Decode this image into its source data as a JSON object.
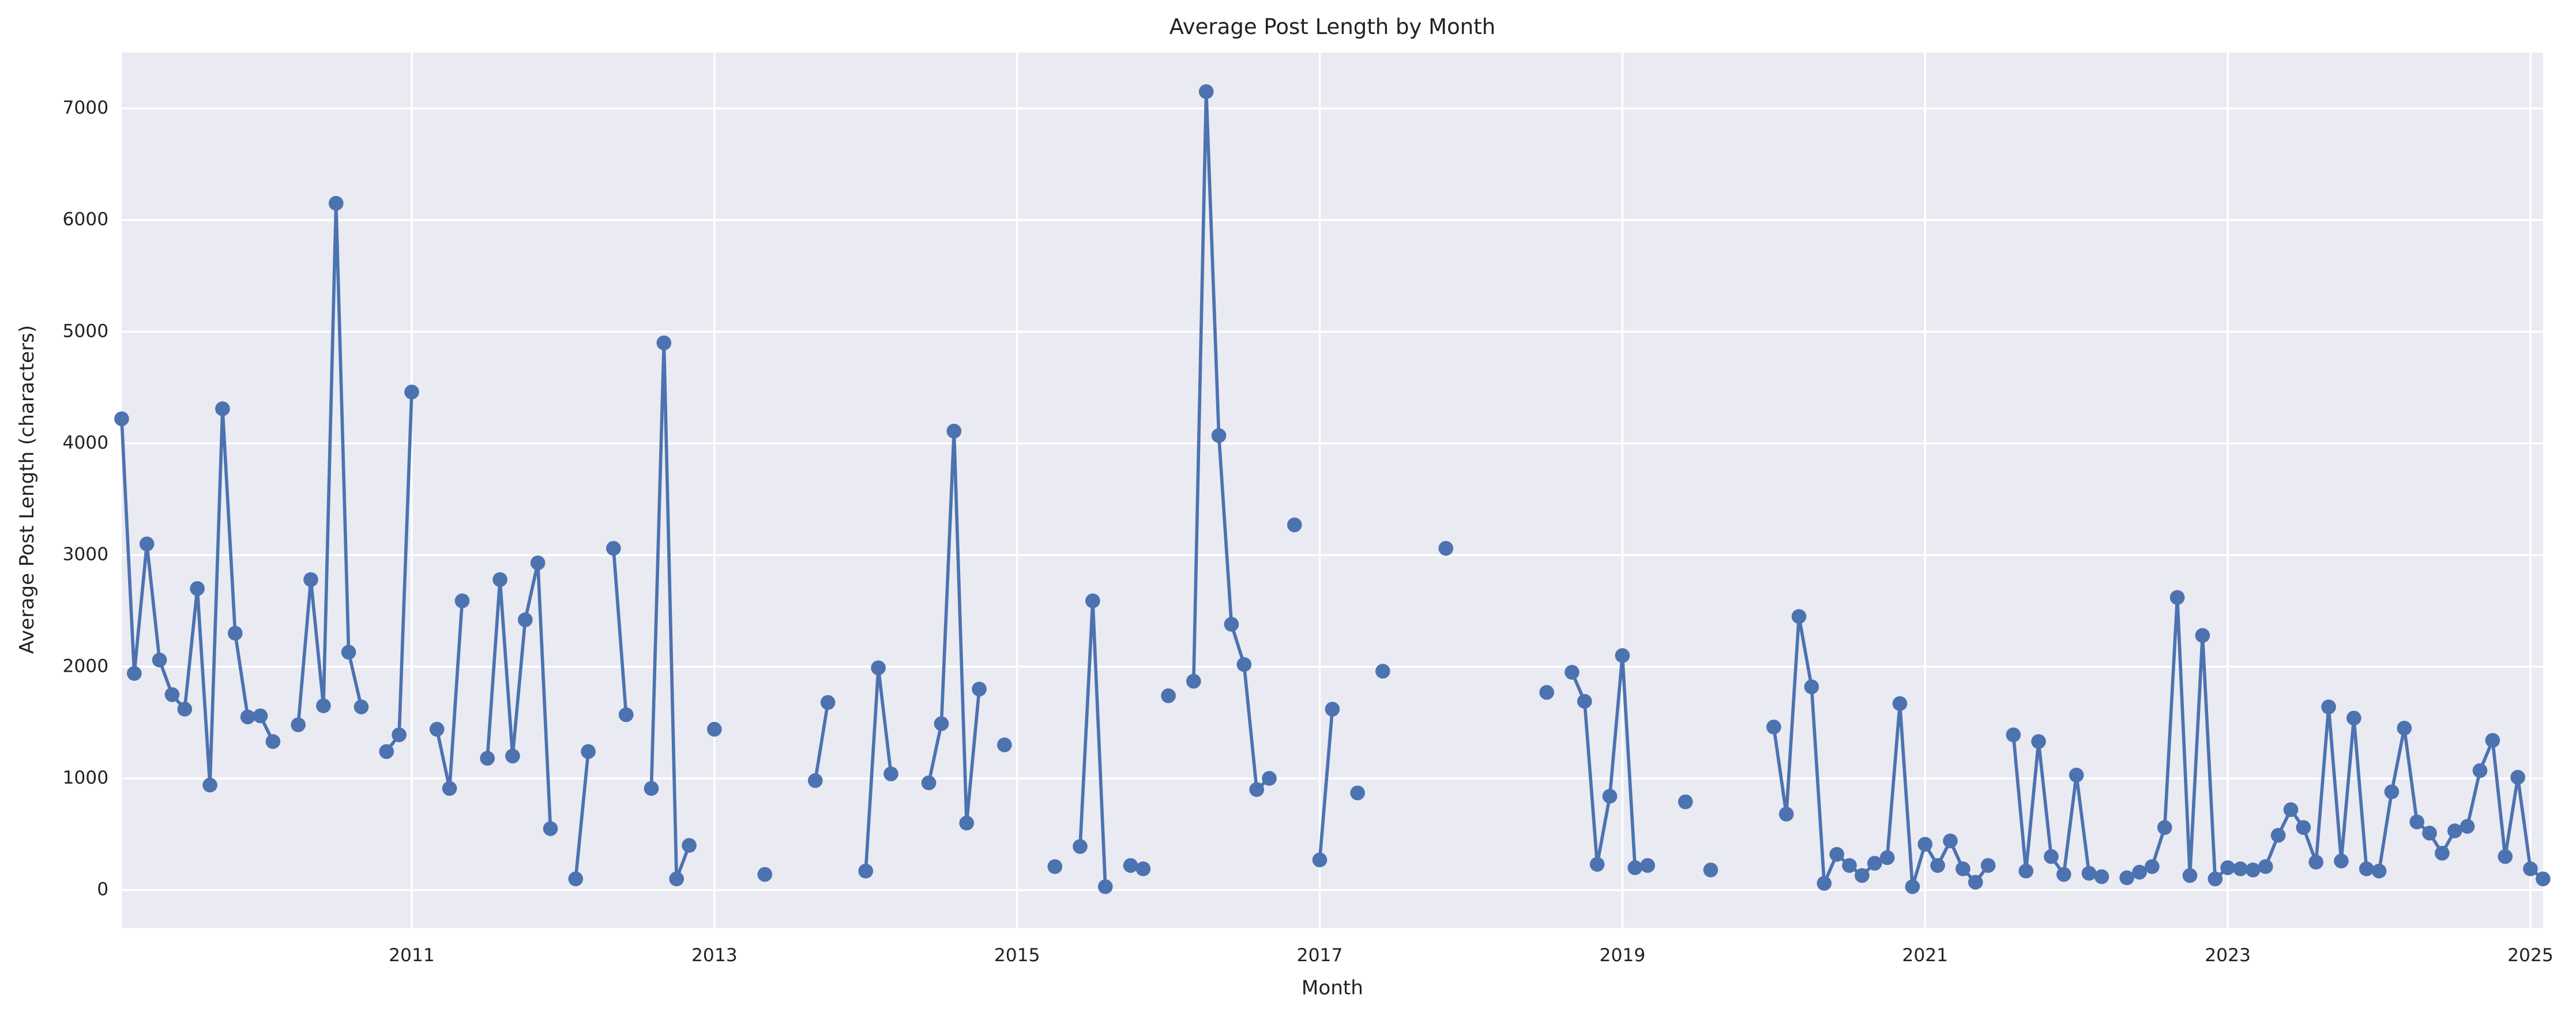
{
  "chart_data": {
    "type": "line",
    "title": "Average Post Length by Month",
    "x_label": "Month",
    "y_label": "Average Post Length (characters)",
    "x": [
      "2009-02",
      "2009-03",
      "2009-04",
      "2009-05",
      "2009-06",
      "2009-07",
      "2009-08",
      "2009-09",
      "2009-10",
      "2009-11",
      "2009-12",
      "2010-01",
      "2010-02",
      "2010-03",
      "2010-04",
      "2010-05",
      "2010-06",
      "2010-07",
      "2010-08",
      "2010-09",
      "2010-10",
      "2010-11",
      "2010-12",
      "2011-01",
      "2011-02",
      "2011-03",
      "2011-04",
      "2011-05",
      "2011-06",
      "2011-07",
      "2011-08",
      "2011-09",
      "2011-10",
      "2011-11",
      "2011-12",
      "2012-01",
      "2012-02",
      "2012-03",
      "2012-04",
      "2012-05",
      "2012-06",
      "2012-07",
      "2012-08",
      "2012-09",
      "2012-10",
      "2012-11",
      "2012-12",
      "2013-01",
      "2013-02",
      "2013-03",
      "2013-04",
      "2013-05",
      "2013-06",
      "2013-07",
      "2013-08",
      "2013-09",
      "2013-10",
      "2013-11",
      "2013-12",
      "2014-01",
      "2014-02",
      "2014-03",
      "2014-04",
      "2014-05",
      "2014-06",
      "2014-07",
      "2014-08",
      "2014-09",
      "2014-10",
      "2014-11",
      "2014-12",
      "2015-01",
      "2015-02",
      "2015-03",
      "2015-04",
      "2015-05",
      "2015-06",
      "2015-07",
      "2015-08",
      "2015-09",
      "2015-10",
      "2015-11",
      "2015-12",
      "2016-01",
      "2016-02",
      "2016-03",
      "2016-04",
      "2016-05",
      "2016-06",
      "2016-07",
      "2016-08",
      "2016-09",
      "2016-10",
      "2016-11",
      "2016-12",
      "2017-01",
      "2017-02",
      "2017-03",
      "2017-04",
      "2017-05",
      "2017-06",
      "2017-07",
      "2017-08",
      "2017-09",
      "2017-10",
      "2017-11",
      "2017-12",
      "2018-01",
      "2018-02",
      "2018-03",
      "2018-04",
      "2018-05",
      "2018-06",
      "2018-07",
      "2018-08",
      "2018-09",
      "2018-10",
      "2018-11",
      "2018-12",
      "2019-01",
      "2019-02",
      "2019-03",
      "2019-04",
      "2019-05",
      "2019-06",
      "2019-07",
      "2019-08",
      "2019-09",
      "2019-10",
      "2019-11",
      "2019-12",
      "2020-01",
      "2020-02",
      "2020-03",
      "2020-04",
      "2020-05",
      "2020-06",
      "2020-07",
      "2020-08",
      "2020-09",
      "2020-10",
      "2020-11",
      "2020-12",
      "2021-01",
      "2021-02",
      "2021-03",
      "2021-04",
      "2021-05",
      "2021-06",
      "2021-07",
      "2021-08",
      "2021-09",
      "2021-10",
      "2021-11",
      "2021-12",
      "2022-01",
      "2022-02",
      "2022-03",
      "2022-04",
      "2022-05",
      "2022-06",
      "2022-07",
      "2022-08",
      "2022-09",
      "2022-10",
      "2022-11",
      "2022-12",
      "2023-01",
      "2023-02",
      "2023-03",
      "2023-04",
      "2023-05",
      "2023-06",
      "2023-07",
      "2023-08",
      "2023-09",
      "2023-10",
      "2023-11",
      "2023-12",
      "2024-01",
      "2024-02",
      "2024-03",
      "2024-04",
      "2024-05",
      "2024-06",
      "2024-07",
      "2024-08",
      "2024-09",
      "2024-10",
      "2024-11",
      "2024-12",
      "2025-01",
      "2025-02"
    ],
    "series": [
      {
        "color": "#4c72b0",
        "values": [
          4220,
          1940,
          3100,
          2060,
          1750,
          1620,
          2700,
          940,
          4310,
          2300,
          1550,
          1560,
          1330,
          null,
          1480,
          2780,
          1650,
          6150,
          2130,
          1640,
          null,
          1240,
          1390,
          4460,
          null,
          1440,
          910,
          2590,
          null,
          1180,
          2780,
          1200,
          2420,
          2930,
          550,
          null,
          100,
          1240,
          null,
          3060,
          1570,
          null,
          910,
          4900,
          100,
          400,
          null,
          1440,
          null,
          null,
          null,
          140,
          null,
          null,
          null,
          980,
          1680,
          null,
          null,
          170,
          1990,
          1040,
          null,
          null,
          960,
          1490,
          4110,
          600,
          1800,
          null,
          1300,
          null,
          null,
          null,
          210,
          null,
          390,
          2590,
          30,
          null,
          220,
          190,
          null,
          1740,
          null,
          1870,
          7150,
          4070,
          2380,
          2020,
          900,
          1000,
          null,
          3270,
          null,
          270,
          1620,
          null,
          870,
          null,
          1960,
          null,
          null,
          null,
          null,
          3060,
          null,
          null,
          null,
          null,
          null,
          null,
          null,
          1770,
          null,
          1950,
          1690,
          230,
          840,
          2100,
          200,
          220,
          null,
          null,
          790,
          null,
          180,
          null,
          null,
          null,
          null,
          1460,
          680,
          2450,
          1820,
          60,
          320,
          220,
          130,
          240,
          290,
          1670,
          30,
          410,
          220,
          440,
          190,
          70,
          220,
          null,
          1390,
          170,
          1330,
          300,
          140,
          1030,
          150,
          120,
          null,
          110,
          160,
          210,
          560,
          2620,
          130,
          2280,
          100,
          200,
          190,
          180,
          210,
          490,
          720,
          560,
          250,
          1640,
          260,
          1540,
          190,
          170,
          880,
          1450,
          610,
          510,
          330,
          530,
          570,
          1070,
          1340,
          300,
          1010,
          190,
          100
        ]
      }
    ],
    "xlim": [
      "2009-02",
      "2025-02"
    ],
    "xticks": [
      {
        "value": "2011-01",
        "label": "2011"
      },
      {
        "value": "2013-01",
        "label": "2013"
      },
      {
        "value": "2015-01",
        "label": "2015"
      },
      {
        "value": "2017-01",
        "label": "2017"
      },
      {
        "value": "2019-01",
        "label": "2019"
      },
      {
        "value": "2021-01",
        "label": "2021"
      },
      {
        "value": "2023-01",
        "label": "2023"
      },
      {
        "value": "2025-01",
        "label": "2025"
      }
    ],
    "ylim": [
      -340,
      7500
    ],
    "yticks": [
      0,
      1000,
      2000,
      3000,
      4000,
      5000,
      6000,
      7000
    ],
    "grid": true
  }
}
